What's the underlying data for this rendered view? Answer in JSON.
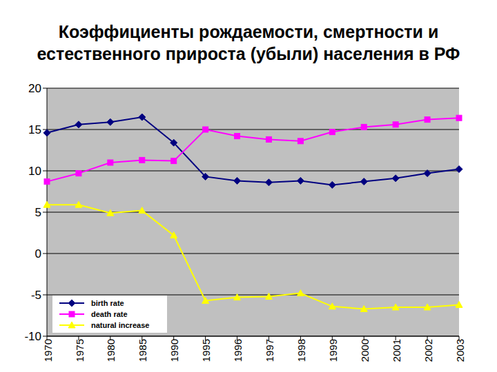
{
  "chart_data": {
    "type": "line",
    "title": "Коэффициенты рождаемости, смертности и естественного прироста (убыли) населения в РФ",
    "categories": [
      "1970",
      "1975",
      "1980",
      "1985",
      "1990",
      "1995",
      "1996",
      "1997",
      "1998",
      "1999",
      "2000",
      "2001",
      "2002",
      "2003"
    ],
    "series": [
      {
        "name": "birth rate",
        "color": "#000080",
        "marker": "diamond",
        "values": [
          14.6,
          15.6,
          15.9,
          16.5,
          13.4,
          9.3,
          8.8,
          8.6,
          8.8,
          8.3,
          8.7,
          9.1,
          9.7,
          10.2
        ]
      },
      {
        "name": "death rate",
        "color": "#ff00ff",
        "marker": "square",
        "values": [
          8.7,
          9.7,
          11.0,
          11.3,
          11.2,
          15.0,
          14.2,
          13.8,
          13.6,
          14.7,
          15.3,
          15.6,
          16.2,
          16.4
        ]
      },
      {
        "name": "natural increase",
        "color": "#ffff00",
        "marker": "triangle",
        "values": [
          5.9,
          5.9,
          4.9,
          5.2,
          2.2,
          -5.7,
          -5.3,
          -5.2,
          -4.8,
          -6.4,
          -6.7,
          -6.5,
          -6.5,
          -6.2
        ]
      }
    ],
    "ylim": [
      -10,
      20
    ],
    "yticks": [
      -10,
      -5,
      0,
      5,
      10,
      15,
      20
    ],
    "grid": true,
    "legend": "bottom-left"
  }
}
